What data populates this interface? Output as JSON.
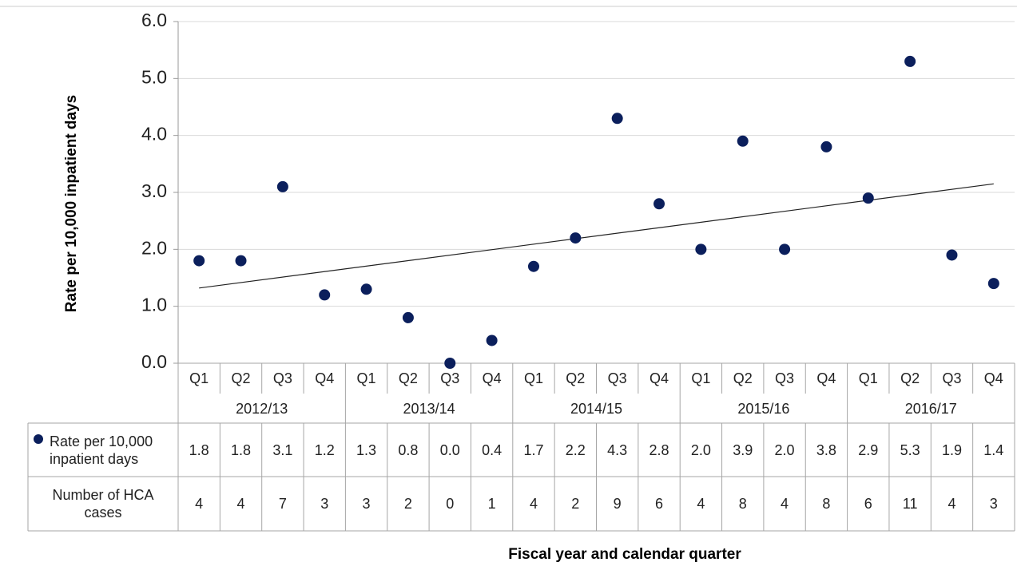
{
  "chart_data": {
    "type": "scatter",
    "y_label": "Rate per 10,000 inpatient days",
    "x_label": "Fiscal year and calendar quarter",
    "categories": [
      "Q1",
      "Q2",
      "Q3",
      "Q4",
      "Q1",
      "Q2",
      "Q3",
      "Q4",
      "Q1",
      "Q2",
      "Q3",
      "Q4",
      "Q1",
      "Q2",
      "Q3",
      "Q4",
      "Q1",
      "Q2",
      "Q3",
      "Q4"
    ],
    "groups": [
      "2012/13",
      "2013/14",
      "2014/15",
      "2015/16",
      "2016/17"
    ],
    "series": [
      {
        "name": "Rate per 10,000 inpatient days",
        "color": "#0b1f5c",
        "values": [
          1.8,
          1.8,
          3.1,
          1.2,
          1.3,
          0.8,
          0.0,
          0.4,
          1.7,
          2.2,
          4.3,
          2.8,
          2.0,
          3.9,
          2.0,
          3.8,
          2.9,
          5.3,
          1.9,
          1.4
        ],
        "value_labels": [
          "1.8",
          "1.8",
          "3.1",
          "1.2",
          "1.3",
          "0.8",
          "0.0",
          "0.4",
          "1.7",
          "2.2",
          "4.3",
          "2.8",
          "2.0",
          "3.9",
          "2.0",
          "3.8",
          "2.9",
          "5.3",
          "1.9",
          "1.4"
        ]
      }
    ],
    "trendline": [
      1.32,
      3.15
    ],
    "counts": {
      "name": "Number of HCA cases",
      "values": [
        4,
        4,
        7,
        3,
        3,
        2,
        0,
        1,
        4,
        2,
        9,
        6,
        4,
        8,
        4,
        8,
        6,
        11,
        4,
        3
      ]
    },
    "ylim": [
      0,
      6
    ],
    "yticks": [
      {
        "value": 0,
        "label": "0.0"
      },
      {
        "value": 1,
        "label": "1.0"
      },
      {
        "value": 2,
        "label": "2.0"
      },
      {
        "value": 3,
        "label": "3.0"
      },
      {
        "value": 4,
        "label": "4.0"
      },
      {
        "value": 5,
        "label": "5.0"
      },
      {
        "value": 6,
        "label": "6.0"
      }
    ],
    "grid": true
  }
}
